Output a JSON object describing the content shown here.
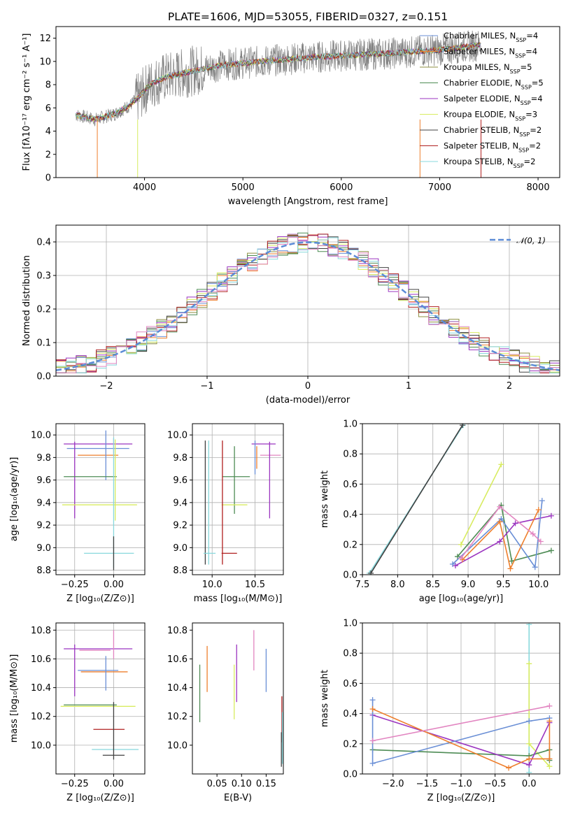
{
  "title": "PLATE=1606, MJD=53055, FIBERID=0327, z=0.151",
  "colors": {
    "data": "#808080",
    "chabrier_miles": "#6a8fd6",
    "salpeter_miles": "#ee7f2d",
    "kroupa_miles": "#8c8f40",
    "chabrier_elodie": "#4e8c55",
    "salpeter_elodie": "#9b35c0",
    "kroupa_elodie": "#d8ec60",
    "chabrier_stelib": "#404040",
    "salpeter_stelib": "#b02020",
    "kroupa_stelib": "#88d8dc",
    "pink": "#e285c1",
    "normal": "#5b8bd6"
  },
  "chart_data": [
    {
      "id": "spectrum",
      "type": "line",
      "xlabel": "wavelength [Angstrom, rest frame]",
      "ylabel": "Flux [fλ10⁻¹⁷ erg cm⁻² s⁻¹ A⁻¹]",
      "xlim": [
        3100,
        8220
      ],
      "ylim": [
        0,
        13
      ],
      "xticks": [
        4000,
        5000,
        6000,
        7000,
        8000
      ],
      "yticks": [
        0,
        2,
        4,
        6,
        8,
        10,
        12
      ],
      "legend": [
        "Chabrier MILES, N_SSP=4",
        "Salpeter MILES, N_SSP=4",
        "Kroupa MILES, N_SSP=5",
        "Chabrier ELODIE, N_SSP=5",
        "Salpeter ELODIE, N_SSP=4",
        "Kroupa ELODIE, N_SSP=3",
        "Chabrier STELIB, N_SSP=2",
        "Salpeter STELIB, N_SSP=2",
        "Kroupa STELIB, N_SSP=2"
      ],
      "legend_keys": [
        "chabrier_miles",
        "salpeter_miles",
        "kroupa_miles",
        "chabrier_elodie",
        "salpeter_elodie",
        "kroupa_elodie",
        "chabrier_stelib",
        "salpeter_stelib",
        "kroupa_stelib"
      ],
      "legend_loc": "top-right",
      "grid": false,
      "continuum": [
        [
          3300,
          5.4
        ],
        [
          3500,
          5.0
        ],
        [
          3700,
          5.5
        ],
        [
          3850,
          6.2
        ],
        [
          3950,
          7.0
        ],
        [
          4050,
          8.0
        ],
        [
          4200,
          8.6
        ],
        [
          4500,
          9.2
        ],
        [
          4800,
          9.7
        ],
        [
          5200,
          10.0
        ],
        [
          5600,
          10.3
        ],
        [
          6000,
          10.5
        ],
        [
          6500,
          10.7
        ],
        [
          7000,
          11.0
        ],
        [
          7400,
          11.4
        ]
      ],
      "x_range": [
        3300,
        7420
      ]
    },
    {
      "id": "residuals",
      "type": "area",
      "xlabel": "(data-model)/error",
      "ylabel": "Normed distribution",
      "xlim": [
        -2.5,
        2.5
      ],
      "ylim": [
        0,
        0.45
      ],
      "xticks": [
        -2,
        -1,
        0,
        1,
        2
      ],
      "yticks": [
        0.0,
        0.1,
        0.2,
        0.3,
        0.4
      ],
      "legend": [
        "𝒩(0, 1)"
      ],
      "legend_loc": "top-right",
      "grid": true,
      "bin_width": 0.1
    },
    {
      "id": "z-age",
      "type": "scatter",
      "xlabel": "Z [log₁₀(Z/Z⊙)]",
      "ylabel": "age  [log₁₀(age/yr)]",
      "xlim": [
        -0.37,
        0.2
      ],
      "ylim": [
        8.76,
        10.1
      ],
      "xticks": [
        -0.25,
        0.0
      ],
      "yticks": [
        8.8,
        9.0,
        9.2,
        9.4,
        9.6,
        9.8,
        10.0
      ],
      "grid": true,
      "points": [
        {
          "c": "salpeter_elodie",
          "x": -0.1,
          "xerr": 0.22,
          "y": 9.92,
          "yerr": 0.0
        },
        {
          "c": "chabrier_miles",
          "x": -0.1,
          "xerr": 0.2,
          "y": 9.88,
          "yerr": 0.0
        },
        {
          "c": "pink",
          "x": 0.0,
          "xerr": 0.0,
          "y": 9.9,
          "yerr": 0.07
        },
        {
          "c": "salpeter_miles",
          "x": -0.1,
          "xerr": 0.13,
          "y": 9.82,
          "yerr": 0.0
        },
        {
          "c": "chabrier_miles",
          "x": -0.05,
          "xerr": 0.0,
          "y": 9.82,
          "yerr": 0.22
        },
        {
          "c": "salpeter_elodie",
          "x": -0.25,
          "xerr": 0.0,
          "y": 9.6,
          "yerr": 0.34
        },
        {
          "c": "chabrier_elodie",
          "x": -0.15,
          "xerr": 0.17,
          "y": 9.63,
          "yerr": 0.0
        },
        {
          "c": "kroupa_elodie",
          "x": 0.01,
          "xerr": 0.0,
          "y": 9.6,
          "yerr": 0.36
        },
        {
          "c": "kroupa_elodie",
          "x": -0.09,
          "xerr": 0.24,
          "y": 9.38,
          "yerr": 0.0
        },
        {
          "c": "kroupa_stelib",
          "x": 0.0,
          "xerr": 0.0,
          "y": 9.4,
          "yerr": 0.58
        },
        {
          "c": "kroupa_stelib",
          "x": -0.03,
          "xerr": 0.16,
          "y": 8.95,
          "yerr": 0.0
        },
        {
          "c": "chabrier_stelib",
          "x": 0.0,
          "xerr": 0.0,
          "y": 8.95,
          "yerr": 0.15
        }
      ]
    },
    {
      "id": "mass-age",
      "type": "scatter",
      "xlabel": "mass [log₁₀(M/M⊙)]",
      "ylabel": "",
      "xlim": [
        9.77,
        10.83
      ],
      "ylim": [
        8.76,
        10.1
      ],
      "xticks": [
        10.0,
        10.5
      ],
      "yticks": [
        8.8,
        9.0,
        9.2,
        9.4,
        9.6,
        9.8,
        10.0
      ],
      "grid": true,
      "points": [
        {
          "c": "salpeter_elodie",
          "x": 10.6,
          "xerr": 0.14,
          "y": 9.92,
          "yerr": 0.0
        },
        {
          "c": "pink",
          "x": 10.68,
          "xerr": 0.12,
          "y": 9.82,
          "yerr": 0.0
        },
        {
          "c": "salpeter_elodie",
          "x": 10.67,
          "xerr": 0.0,
          "y": 9.6,
          "yerr": 0.34
        },
        {
          "c": "salpeter_miles",
          "x": 10.52,
          "xerr": 0.0,
          "y": 9.8,
          "yerr": 0.1
        },
        {
          "c": "chabrier_miles",
          "x": 10.5,
          "xerr": 0.0,
          "y": 9.8,
          "yerr": 0.15
        },
        {
          "c": "chabrier_elodie",
          "x": 10.28,
          "xerr": 0.16,
          "y": 9.63,
          "yerr": 0.0
        },
        {
          "c": "chabrier_elodie",
          "x": 10.26,
          "xerr": 0.0,
          "y": 9.6,
          "yerr": 0.3
        },
        {
          "c": "kroupa_elodie",
          "x": 10.26,
          "xerr": 0.15,
          "y": 9.38,
          "yerr": 0.0
        },
        {
          "c": "chabrier_stelib",
          "x": 9.92,
          "xerr": 0.0,
          "y": 9.4,
          "yerr": 0.55
        },
        {
          "c": "kroupa_stelib",
          "x": 9.96,
          "xerr": 0.0,
          "y": 9.4,
          "yerr": 0.55
        },
        {
          "c": "salpeter_stelib",
          "x": 10.12,
          "xerr": 0.0,
          "y": 9.4,
          "yerr": 0.55
        },
        {
          "c": "salpeter_stelib",
          "x": 10.2,
          "xerr": 0.09,
          "y": 8.95,
          "yerr": 0.0
        },
        {
          "c": "kroupa_stelib",
          "x": 9.97,
          "xerr": 0.07,
          "y": 8.95,
          "yerr": 0.0
        }
      ]
    },
    {
      "id": "age-weight",
      "type": "line",
      "xlabel": "age  [log₁₀(age/yr)]",
      "ylabel": "mass weight",
      "xlim": [
        7.5,
        10.3
      ],
      "ylim": [
        0,
        1.0
      ],
      "xticks": [
        7.5,
        8.0,
        8.5,
        9.0,
        9.5,
        10.0
      ],
      "yticks": [
        0.0,
        0.2,
        0.4,
        0.6,
        0.8,
        1.0
      ],
      "grid": true,
      "series": [
        {
          "c": "kroupa_stelib",
          "x": [
            7.6,
            8.93
          ],
          "y": [
            0.01,
            0.99
          ]
        },
        {
          "c": "chabrier_stelib",
          "x": [
            7.62,
            8.92
          ],
          "y": [
            0.01,
            0.99
          ]
        },
        {
          "c": "kroupa_elodie",
          "x": [
            8.9,
            9.47
          ],
          "y": [
            0.2,
            0.73
          ]
        },
        {
          "c": "chabrier_elodie",
          "x": [
            8.85,
            9.47,
            9.62,
            10.18
          ],
          "y": [
            0.12,
            0.46,
            0.09,
            0.16
          ]
        },
        {
          "c": "salpeter_elodie",
          "x": [
            8.82,
            9.45,
            9.67,
            10.18
          ],
          "y": [
            0.06,
            0.22,
            0.34,
            0.39
          ]
        },
        {
          "c": "chabrier_miles",
          "x": [
            8.78,
            9.47,
            9.95,
            10.05
          ],
          "y": [
            0.07,
            0.37,
            0.05,
            0.49
          ]
        },
        {
          "c": "salpeter_miles",
          "x": [
            8.92,
            9.45,
            9.6,
            10.0
          ],
          "y": [
            0.1,
            0.35,
            0.04,
            0.43
          ]
        },
        {
          "c": "pink",
          "x": [
            8.9,
            9.45,
            9.92,
            10.03
          ],
          "y": [
            0.11,
            0.45,
            0.27,
            0.22
          ]
        }
      ]
    },
    {
      "id": "z-mass",
      "type": "scatter",
      "xlabel": "Z [log₁₀(Z/Z⊙)]",
      "ylabel": "mass [log₁₀(M/M⊙)]",
      "xlim": [
        -0.37,
        0.2
      ],
      "ylim": [
        9.8,
        10.85
      ],
      "xticks": [
        -0.25,
        0.0
      ],
      "yticks": [
        10.0,
        10.2,
        10.4,
        10.6,
        10.8
      ],
      "grid": true,
      "points": [
        {
          "c": "salpeter_elodie",
          "x": -0.1,
          "xerr": 0.22,
          "y": 10.67,
          "yerr": 0.0
        },
        {
          "c": "pink",
          "x": -0.12,
          "xerr": 0.1,
          "y": 10.66,
          "yerr": 0.0
        },
        {
          "c": "pink",
          "x": 0.0,
          "xerr": 0.0,
          "y": 10.7,
          "yerr": 0.1
        },
        {
          "c": "salpeter_elodie",
          "x": -0.25,
          "xerr": 0.0,
          "y": 10.52,
          "yerr": 0.18
        },
        {
          "c": "chabrier_miles",
          "x": -0.1,
          "xerr": 0.13,
          "y": 10.52,
          "yerr": 0.0
        },
        {
          "c": "salpeter_miles",
          "x": -0.06,
          "xerr": 0.15,
          "y": 10.51,
          "yerr": 0.0
        },
        {
          "c": "chabrier_miles",
          "x": -0.05,
          "xerr": 0.0,
          "y": 10.5,
          "yerr": 0.12
        },
        {
          "c": "chabrier_elodie",
          "x": -0.15,
          "xerr": 0.17,
          "y": 10.28,
          "yerr": 0.0
        },
        {
          "c": "kroupa_elodie",
          "x": -0.1,
          "xerr": 0.24,
          "y": 10.27,
          "yerr": 0.0
        },
        {
          "c": "salpeter_stelib",
          "x": -0.03,
          "xerr": 0.1,
          "y": 10.11,
          "yerr": 0.0
        },
        {
          "c": "kroupa_stelib",
          "x": 0.01,
          "xerr": 0.15,
          "y": 9.97,
          "yerr": 0.0
        },
        {
          "c": "chabrier_stelib",
          "x": 0.0,
          "xerr": 0.07,
          "y": 9.93,
          "yerr": 0.0
        },
        {
          "c": "chabrier_stelib",
          "x": 0.0,
          "xerr": 0.0,
          "y": 10.1,
          "yerr": 0.2
        }
      ]
    },
    {
      "id": "ebv-mass",
      "type": "scatter",
      "xlabel": "E(B-V)",
      "ylabel": "",
      "xlim": [
        0.0,
        0.185
      ],
      "ylim": [
        9.8,
        10.85
      ],
      "xticks": [
        0.05,
        0.1,
        0.15
      ],
      "yticks": [
        10.0,
        10.2,
        10.4,
        10.6,
        10.8
      ],
      "grid": false,
      "points": [
        {
          "c": "chabrier_elodie",
          "x": 0.015,
          "xerr": 0.0,
          "y": 10.36,
          "yerr": 0.2
        },
        {
          "c": "salpeter_miles",
          "x": 0.03,
          "xerr": 0.0,
          "y": 10.53,
          "yerr": 0.16
        },
        {
          "c": "salpeter_elodie",
          "x": 0.09,
          "xerr": 0.0,
          "y": 10.5,
          "yerr": 0.2
        },
        {
          "c": "kroupa_elodie",
          "x": 0.085,
          "xerr": 0.0,
          "y": 10.37,
          "yerr": 0.19
        },
        {
          "c": "pink",
          "x": 0.125,
          "xerr": 0.0,
          "y": 10.66,
          "yerr": 0.14
        },
        {
          "c": "chabrier_miles",
          "x": 0.15,
          "xerr": 0.0,
          "y": 10.52,
          "yerr": 0.15
        },
        {
          "c": "salpeter_stelib",
          "x": 0.182,
          "xerr": 0.0,
          "y": 10.18,
          "yerr": 0.16
        },
        {
          "c": "kroupa_stelib",
          "x": 0.183,
          "xerr": 0.0,
          "y": 10.05,
          "yerr": 0.18
        },
        {
          "c": "chabrier_stelib",
          "x": 0.181,
          "xerr": 0.0,
          "y": 9.97,
          "yerr": 0.12
        }
      ]
    },
    {
      "id": "z-weight",
      "type": "line",
      "xlabel": "Z [log₁₀(Z/Z⊙)]",
      "ylabel": "mass weight",
      "xlim": [
        -2.45,
        0.45
      ],
      "ylim": [
        0,
        1.0
      ],
      "xticks": [
        -2.0,
        -1.5,
        -1.0,
        -0.5,
        0.0
      ],
      "yticks": [
        0.0,
        0.2,
        0.4,
        0.6,
        0.8,
        1.0
      ],
      "grid": true,
      "series": [
        {
          "c": "kroupa_stelib",
          "x": [
            0.0,
            0.0
          ],
          "y": [
            0.01,
            0.99
          ]
        },
        {
          "c": "kroupa_elodie",
          "x": [
            0.0,
            0.0,
            0.3
          ],
          "y": [
            0.73,
            0.2,
            0.05
          ]
        },
        {
          "c": "chabrier_elodie",
          "x": [
            -2.3,
            0.0,
            0.3,
            0.3
          ],
          "y": [
            0.16,
            0.12,
            0.16,
            0.09
          ]
        },
        {
          "c": "salpeter_elodie",
          "x": [
            -2.3,
            0.0,
            0.3
          ],
          "y": [
            0.39,
            0.06,
            0.34
          ]
        },
        {
          "c": "chabrier_miles",
          "x": [
            -2.3,
            -2.3,
            0.0,
            0.3
          ],
          "y": [
            0.49,
            0.07,
            0.35,
            0.37
          ]
        },
        {
          "c": "salpeter_miles",
          "x": [
            -2.3,
            -0.3,
            0.0,
            0.3,
            0.3
          ],
          "y": [
            0.43,
            0.04,
            0.1,
            0.1,
            0.35
          ]
        },
        {
          "c": "pink",
          "x": [
            -2.3,
            0.3
          ],
          "y": [
            0.22,
            0.45
          ]
        }
      ]
    }
  ]
}
